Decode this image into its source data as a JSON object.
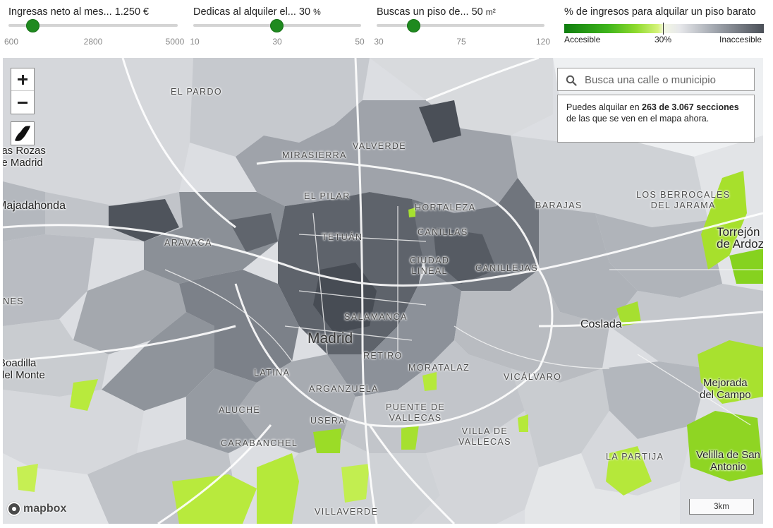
{
  "controls": {
    "income": {
      "title": "Ingresas neto al mes...",
      "value": "1.250",
      "unit": "€",
      "min": "600",
      "mid": "2800",
      "max": "5000",
      "numeric_value": 1250,
      "numeric_min": 600,
      "numeric_max": 5000
    },
    "rent_share": {
      "title": "Dedicas al alquiler el...",
      "value": "30",
      "unit": "%",
      "min": "10",
      "mid": "30",
      "max": "50",
      "numeric_value": 30,
      "numeric_min": 10,
      "numeric_max": 50
    },
    "flat_size": {
      "title": "Buscas un piso de...",
      "value": "50",
      "unit": "m²",
      "min": "30",
      "mid": "75",
      "max": "120",
      "numeric_value": 50,
      "numeric_min": 30,
      "numeric_max": 120
    }
  },
  "legend": {
    "title": "% de ingresos para alquilar un piso barato",
    "left_label": "Accesible",
    "center_label": "30%",
    "right_label": "Inaccesible",
    "colors": {
      "accessible": "#0f7d0f",
      "mid_green": "#8fda2e",
      "neutral": "#f2f7e4",
      "inaccessible": "#4b5058"
    }
  },
  "map": {
    "search": {
      "placeholder": "Busca una calle o municipio",
      "value": ""
    },
    "info": {
      "prefix": "Puedes alquilar en",
      "count": "263 de 3.067",
      "count_suffix": "secciones",
      "suffix": "de las que se ven en el mapa ahora."
    },
    "zoom_in_icon": "plus-icon",
    "zoom_out_icon": "minus-icon",
    "scale_label": "3km",
    "attribution": "mapbox",
    "city_label": "Madrid",
    "district_labels": [
      "EL PARDO",
      "MIRASIERRA",
      "VALVERDE",
      "EL PILAR",
      "HORTALEZA",
      "BARAJAS",
      "TETUÁN",
      "CANILLAS",
      "ARAVACA",
      "CIUDAD LINEAL",
      "CANILLEJAS",
      "SALAMANCA",
      "RETIRO",
      "LATINA",
      "MORATALAZ",
      "VICÁLVARO",
      "ARGANZUELA",
      "ALUCHE",
      "USERA",
      "PUENTE DE VALLECAS",
      "CARABANCHEL",
      "VILLA DE VALLECAS",
      "LA PARTIJA",
      "VILLAVERDE",
      "LOS BERROCALES DEL JARAMA"
    ],
    "town_labels": [
      "Las Rozas de Madrid",
      "Majadahonda",
      "Coslada",
      "Torrejón de Ardoz",
      "Mejorada del Campo",
      "Velilla de San Antonio",
      "Boadilla del Monte",
      "NES"
    ]
  }
}
